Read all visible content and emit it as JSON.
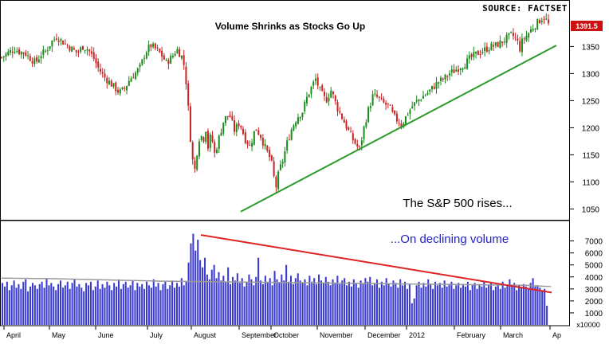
{
  "chart_data": {
    "type": "candlestick",
    "title": "Volume Shrinks as Stocks Go Up",
    "source": "SOURCE: FACTSET",
    "last_price_badge": "1391.5",
    "price_panel": {
      "ylim": [
        1030,
        1430
      ],
      "yticks": [
        "1050",
        "1100",
        "1150",
        "1200",
        "1250",
        "1300",
        "1350"
      ],
      "ytick_values": [
        1050,
        1100,
        1150,
        1200,
        1250,
        1300,
        1350
      ],
      "annotation": "The S&P 500 rises...",
      "trendline": {
        "color": "#2a9a2a",
        "from": [
          "Sep",
          1045
        ],
        "to": [
          "Mar end",
          1352
        ]
      },
      "series_path": [
        [
          0,
          1330
        ],
        [
          6,
          1340
        ],
        [
          10,
          1345
        ],
        [
          14,
          1340
        ],
        [
          18,
          1338
        ],
        [
          22,
          1328
        ],
        [
          26,
          1320
        ],
        [
          30,
          1335
        ],
        [
          34,
          1342
        ],
        [
          38,
          1358
        ],
        [
          42,
          1368
        ],
        [
          46,
          1360
        ],
        [
          50,
          1352
        ],
        [
          54,
          1345
        ],
        [
          58,
          1338
        ],
        [
          62,
          1350
        ],
        [
          66,
          1345
        ],
        [
          70,
          1330
        ],
        [
          74,
          1310
        ],
        [
          78,
          1295
        ],
        [
          82,
          1285
        ],
        [
          86,
          1275
        ],
        [
          90,
          1265
        ],
        [
          94,
          1272
        ],
        [
          98,
          1290
        ],
        [
          102,
          1300
        ],
        [
          106,
          1312
        ],
        [
          110,
          1340
        ],
        [
          114,
          1352
        ],
        [
          118,
          1345
        ],
        [
          122,
          1335
        ],
        [
          126,
          1320
        ],
        [
          130,
          1330
        ],
        [
          134,
          1345
        ],
        [
          138,
          1330
        ],
        [
          140,
          1310
        ],
        [
          142,
          1260
        ],
        [
          144,
          1190
        ],
        [
          146,
          1140
        ],
        [
          148,
          1120
        ],
        [
          150,
          1170
        ],
        [
          152,
          1190
        ],
        [
          154,
          1175
        ],
        [
          156,
          1200
        ],
        [
          158,
          1160
        ],
        [
          160,
          1190
        ],
        [
          163,
          1150
        ],
        [
          166,
          1180
        ],
        [
          170,
          1215
        ],
        [
          174,
          1225
        ],
        [
          178,
          1195
        ],
        [
          182,
          1210
        ],
        [
          186,
          1180
        ],
        [
          190,
          1165
        ],
        [
          194,
          1200
        ],
        [
          198,
          1185
        ],
        [
          202,
          1160
        ],
        [
          206,
          1140
        ],
        [
          208,
          1110
        ],
        [
          210,
          1090
        ],
        [
          212,
          1120
        ],
        [
          215,
          1140
        ],
        [
          218,
          1170
        ],
        [
          222,
          1200
        ],
        [
          226,
          1220
        ],
        [
          230,
          1230
        ],
        [
          234,
          1260
        ],
        [
          238,
          1280
        ],
        [
          240,
          1290
        ],
        [
          244,
          1265
        ],
        [
          248,
          1250
        ],
        [
          252,
          1270
        ],
        [
          256,
          1240
        ],
        [
          260,
          1220
        ],
        [
          264,
          1200
        ],
        [
          268,
          1180
        ],
        [
          272,
          1165
        ],
        [
          274,
          1160
        ],
        [
          276,
          1190
        ],
        [
          280,
          1230
        ],
        [
          284,
          1260
        ],
        [
          288,
          1255
        ],
        [
          292,
          1245
        ],
        [
          296,
          1240
        ],
        [
          300,
          1220
        ],
        [
          304,
          1210
        ],
        [
          306,
          1205
        ],
        [
          310,
          1225
        ],
        [
          314,
          1240
        ],
        [
          318,
          1250
        ],
        [
          322,
          1258
        ],
        [
          326,
          1265
        ],
        [
          330,
          1275
        ],
        [
          334,
          1285
        ],
        [
          338,
          1290
        ],
        [
          342,
          1300
        ],
        [
          346,
          1305
        ],
        [
          350,
          1312
        ],
        [
          354,
          1318
        ],
        [
          358,
          1328
        ],
        [
          362,
          1335
        ],
        [
          366,
          1340
        ],
        [
          370,
          1345
        ],
        [
          374,
          1350
        ],
        [
          378,
          1352
        ],
        [
          382,
          1358
        ],
        [
          386,
          1365
        ],
        [
          390,
          1372
        ],
        [
          394,
          1362
        ],
        [
          396,
          1345
        ],
        [
          398,
          1360
        ],
        [
          402,
          1372
        ],
        [
          406,
          1385
        ],
        [
          410,
          1395
        ],
        [
          414,
          1405
        ],
        [
          416,
          1400
        ],
        [
          418,
          1391
        ]
      ]
    },
    "volume_panel": {
      "ylim": [
        0,
        8500
      ],
      "yticks": [
        "1000",
        "2000",
        "3000",
        "4000",
        "5000",
        "6000",
        "7000"
      ],
      "ytick_values": [
        1000,
        2000,
        3000,
        4000,
        5000,
        6000,
        7000
      ],
      "unit_label": "x10000",
      "annotation": "...On declining volume",
      "trendline": {
        "color": "#dd2222",
        "from": [
          "Aug",
          7500
        ],
        "to": [
          "Mar end",
          2700
        ]
      },
      "moving_average": [
        [
          0,
          3900
        ],
        [
          40,
          3850
        ],
        [
          80,
          3750
        ],
        [
          120,
          3650
        ],
        [
          160,
          3600
        ],
        [
          200,
          3550
        ],
        [
          240,
          3500
        ],
        [
          280,
          3450
        ],
        [
          320,
          3400
        ],
        [
          360,
          3350
        ],
        [
          400,
          3300
        ],
        [
          420,
          3200
        ]
      ],
      "bars": [
        3500,
        3200,
        3600,
        2900,
        3300,
        3700,
        3100,
        3400,
        3000,
        3600,
        3800,
        2800,
        3200,
        3500,
        3300,
        3000,
        3400,
        3600,
        3100,
        3900,
        3300,
        3500,
        3200,
        2900,
        3400,
        3700,
        3100,
        3300,
        3600,
        3000,
        3500,
        3800,
        3200,
        3400,
        3100,
        2800,
        3500,
        3300,
        3600,
        2900,
        3200,
        3700,
        3000,
        3400,
        3100,
        3600,
        3300,
        2900,
        3500,
        3200,
        3800,
        3000,
        3400,
        3600,
        3100,
        3300,
        3700,
        2900,
        3500,
        3200,
        3400,
        3000,
        3600,
        3300,
        3100,
        3800,
        3200,
        3500,
        2900,
        3400,
        3600,
        3000,
        3300,
        3700,
        3100,
        3500,
        3200,
        3900,
        3300,
        3600,
        5200,
        6800,
        7600,
        6200,
        7100,
        5400,
        4800,
        5600,
        4200,
        3800,
        4600,
        5000,
        3900,
        4400,
        3700,
        4100,
        3600,
        4800,
        3400,
        4000,
        3700,
        4300,
        3500,
        3900,
        3200,
        3600,
        4200,
        3800,
        3300,
        4000,
        5600,
        3700,
        3400,
        4100,
        3600,
        3900,
        3300,
        4500,
        3800,
        3500,
        4200,
        3700,
        5000,
        3600,
        4100,
        3400,
        3900,
        4300,
        3700,
        3500,
        3800,
        3300,
        4100,
        3600,
        3900,
        3400,
        4200,
        3700,
        3500,
        4000,
        3600,
        3300,
        3800,
        3500,
        4100,
        3400,
        3700,
        3900,
        3300,
        3600,
        3200,
        3800,
        3500,
        3100,
        3700,
        3400,
        3900,
        3600,
        4000,
        3300,
        3500,
        3800,
        3100,
        3600,
        3300,
        3900,
        3400,
        3200,
        3700,
        3500,
        3100,
        3800,
        3300,
        3600,
        3000,
        3400,
        1800,
        2200,
        3300,
        3600,
        3100,
        3500,
        3200,
        3800,
        3400,
        3000,
        3600,
        3300,
        3500,
        3100,
        3700,
        3200,
        3400,
        3600,
        3000,
        3300,
        3500,
        3100,
        3400,
        3200,
        3600,
        2900,
        3300,
        3500,
        3000,
        3400,
        3200,
        3600,
        3100,
        3300,
        3500,
        2900,
        3200,
        3400,
        3000,
        3600,
        3100,
        3300,
        3800,
        3200,
        3500,
        2900,
        3300,
        3100,
        3400,
        3200,
        3000,
        3500,
        3900,
        3200,
        3300,
        3100,
        2900,
        3000,
        1600
      ]
    },
    "x_axis": {
      "labels": [
        "April",
        "May",
        "June",
        "July",
        "August",
        "September",
        "October",
        "November",
        "December",
        "2012",
        "February",
        "March",
        "Ap"
      ],
      "positions": [
        5,
        62,
        120,
        185,
        240,
        300,
        340,
        398,
        458,
        510,
        570,
        628,
        690
      ]
    },
    "grid": false,
    "colors": {
      "up": "#1a8a1a",
      "down": "#cc2222",
      "volume": "#3a3ad0",
      "ma": "#999999",
      "badge": "#cc1111"
    }
  }
}
